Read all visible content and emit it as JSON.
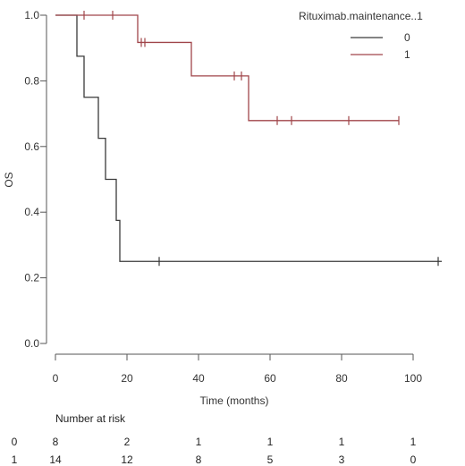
{
  "chart_data": {
    "type": "line",
    "subtype": "kaplan-meier-step",
    "xlabel": "Time (months)",
    "ylabel": "OS",
    "xlim": [
      0,
      110
    ],
    "ylim": [
      0,
      1
    ],
    "x_ticks": [
      0,
      20,
      40,
      60,
      80,
      100
    ],
    "y_ticks": [
      0.0,
      0.2,
      0.4,
      0.6,
      0.8,
      1.0
    ],
    "y_tick_labels": [
      "0.0",
      "0.2",
      "0.4",
      "0.6",
      "0.8",
      "1.0"
    ],
    "grid": false,
    "legend": {
      "title": "Rituximab.maintenance..1",
      "placement": "top-right",
      "entries": [
        "0",
        "1"
      ]
    },
    "series": [
      {
        "name": "0",
        "color": "#3a3a3a",
        "steps": [
          [
            0,
            1.0
          ],
          [
            6,
            0.875
          ],
          [
            8,
            0.75
          ],
          [
            12,
            0.625
          ],
          [
            14,
            0.5
          ],
          [
            17,
            0.375
          ],
          [
            18,
            0.25
          ],
          [
            108,
            0.25
          ]
        ],
        "censor_times": [
          29,
          107
        ]
      },
      {
        "name": "1",
        "color": "#a0454a",
        "steps": [
          [
            0,
            1.0
          ],
          [
            23,
            0.917
          ],
          [
            38,
            0.815
          ],
          [
            54,
            0.679
          ],
          [
            96,
            0.679
          ]
        ],
        "censor_times": [
          8,
          16,
          24,
          25,
          50,
          52,
          62,
          66,
          82,
          96
        ]
      }
    ],
    "risk_table": {
      "title": "Number at risk",
      "rows": [
        {
          "label": "0",
          "counts": [
            "8",
            "2",
            "1",
            "1",
            "1",
            "1"
          ]
        },
        {
          "label": "1",
          "counts": [
            "14",
            "12",
            "8",
            "5",
            "3",
            "0"
          ]
        }
      ]
    }
  }
}
